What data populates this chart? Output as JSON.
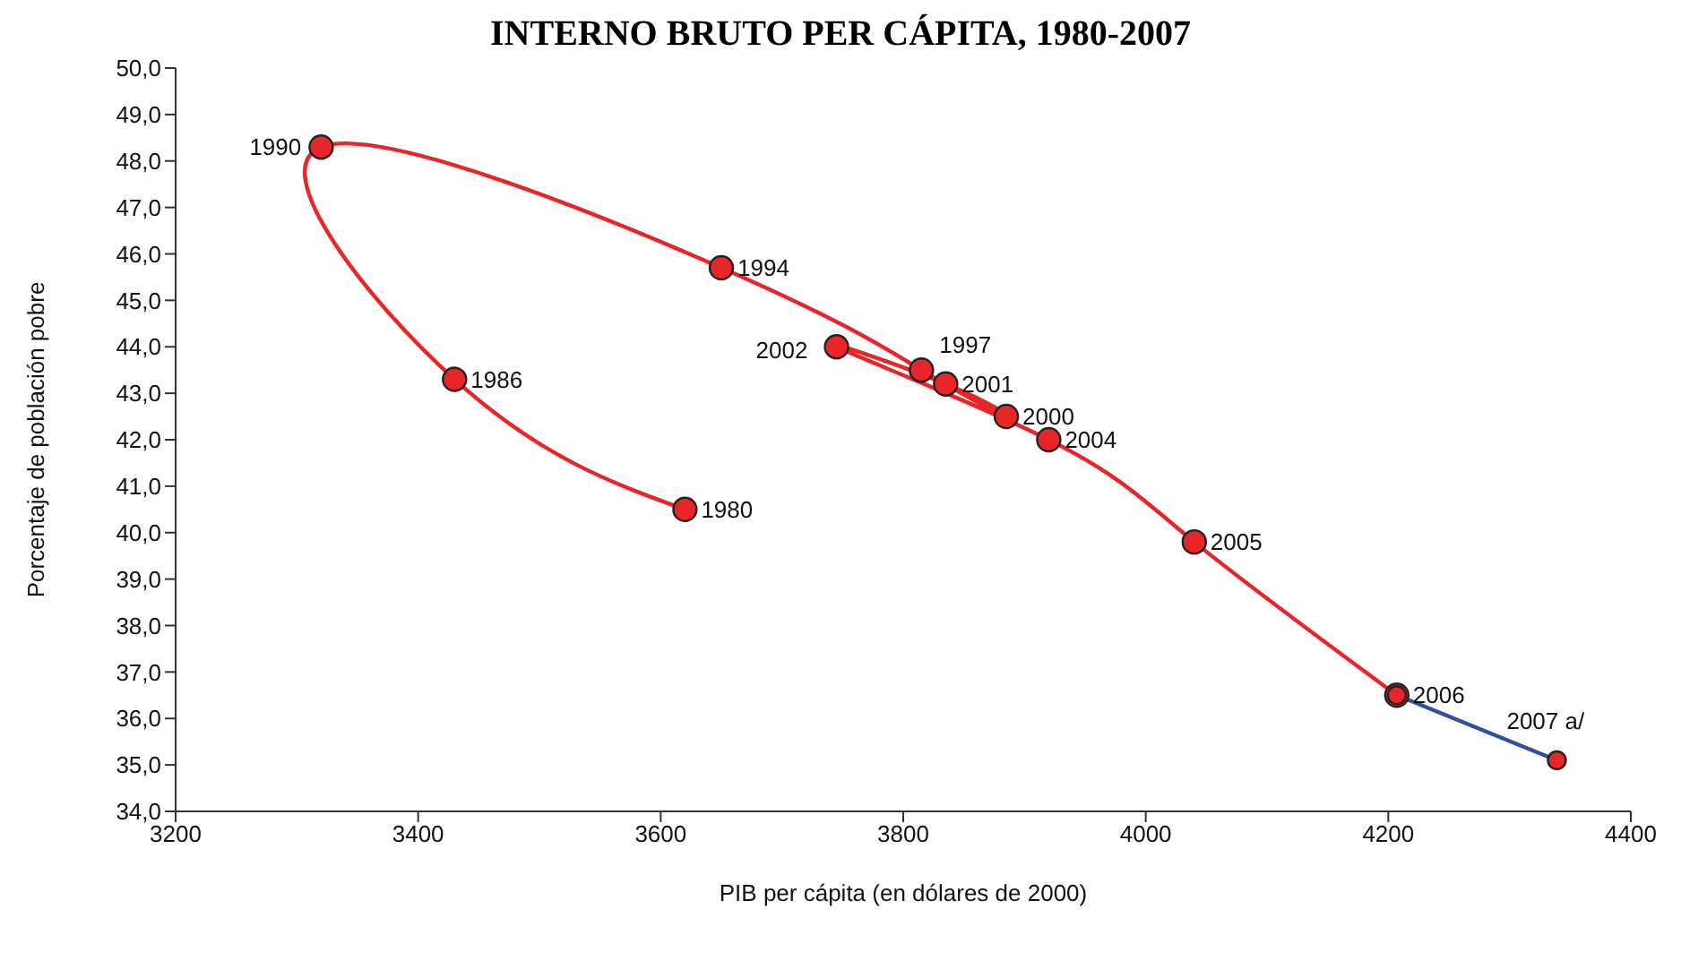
{
  "chart_data": {
    "type": "line",
    "title": "INTERNO BRUTO PER CÁPITA, 1980-2007",
    "xlabel": "PIB per cápita (en dólares de 2000)",
    "ylabel": "Porcentaje de población pobre",
    "series": [
      {
        "color": "#e8262a",
        "x": [
          3620,
          3430,
          3320,
          3650,
          3815,
          3885,
          3835,
          3745,
          3920,
          4040,
          4207
        ],
        "values": [
          40.5,
          43.3,
          48.3,
          45.7,
          43.5,
          42.5,
          43.2,
          44.0,
          42.0,
          39.8,
          36.5
        ]
      },
      {
        "color": "#2e4fa3",
        "x": [
          4207,
          4339
        ],
        "values": [
          36.5,
          35.1
        ]
      }
    ],
    "annotations": [
      {
        "text": "1980",
        "x": 3620,
        "y": 40.5
      },
      {
        "text": "1986",
        "x": 3430,
        "y": 43.3
      },
      {
        "text": "1990",
        "x": 3320,
        "y": 48.3
      },
      {
        "text": "1994",
        "x": 3650,
        "y": 45.7
      },
      {
        "text": "1997",
        "x": 3815,
        "y": 43.5
      },
      {
        "text": "2000",
        "x": 3885,
        "y": 42.5
      },
      {
        "text": "2001",
        "x": 3835,
        "y": 43.2
      },
      {
        "text": "2002",
        "x": 3745,
        "y": 44.0
      },
      {
        "text": "2004",
        "x": 3920,
        "y": 42.0
      },
      {
        "text": "2005",
        "x": 4040,
        "y": 39.8
      },
      {
        "text": "2006",
        "x": 4207,
        "y": 36.5
      },
      {
        "text": "2007 a/",
        "x": 4339,
        "y": 35.1
      }
    ],
    "xlim": [
      3200,
      4400
    ],
    "xticks": [
      3200,
      3400,
      3600,
      3800,
      4000,
      4200,
      4400
    ],
    "ylim": [
      34,
      50
    ],
    "yticks": [
      {
        "value": 34,
        "label": "34,0"
      },
      {
        "value": 35,
        "label": "35,0"
      },
      {
        "value": 36,
        "label": "36,0"
      },
      {
        "value": 37,
        "label": "37,0"
      },
      {
        "value": 38,
        "label": "38,0"
      },
      {
        "value": 39,
        "label": "39,0"
      },
      {
        "value": 40,
        "label": "40,0"
      },
      {
        "value": 41,
        "label": "41,0"
      },
      {
        "value": 42,
        "label": "42,0"
      },
      {
        "value": 43,
        "label": "43,0"
      },
      {
        "value": 44,
        "label": "44,0"
      },
      {
        "value": 45,
        "label": "45,0"
      },
      {
        "value": 46,
        "label": "46,0"
      },
      {
        "value": 47,
        "label": "47,0"
      },
      {
        "value": 48,
        "label": "48,0"
      },
      {
        "value": 49,
        "label": "49,0"
      },
      {
        "value": 50,
        "label": "50,0"
      }
    ],
    "marker": "circle",
    "grid": false,
    "legend": false
  }
}
